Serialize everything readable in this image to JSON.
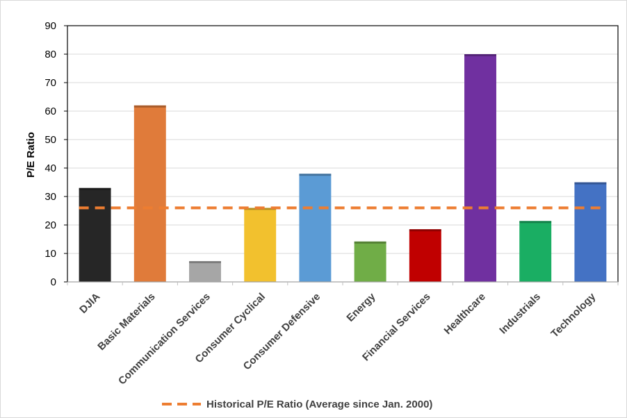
{
  "chart_data": {
    "type": "bar",
    "title": "",
    "xlabel": "",
    "ylabel": "P/E Ratio",
    "ylim": [
      0,
      90
    ],
    "yticks": [
      0,
      10,
      20,
      30,
      40,
      50,
      60,
      70,
      80,
      90
    ],
    "grid": true,
    "legend_position": "bottom-center",
    "categories": [
      "DJIA",
      "Basic Materials",
      "Communication Services",
      "Consumer Cyclical",
      "Consumer Defensive",
      "Energy",
      "Financial Services",
      "Healthcare",
      "Industrials",
      "Technology"
    ],
    "values": [
      33,
      62,
      7.3,
      26,
      38,
      14.2,
      18.5,
      80,
      21.4,
      35
    ],
    "bar_colors": [
      "#262626",
      "#e07b3a",
      "#a6a6a6",
      "#f2c12e",
      "#5b9bd5",
      "#70ad47",
      "#c00000",
      "#7030a0",
      "#1aae63",
      "#4472c4"
    ],
    "reference_line": {
      "name": "Historical P/E Ratio (Average since Jan. 2000)",
      "value": 26,
      "color": "#ed7d31",
      "style": "dashed"
    }
  }
}
